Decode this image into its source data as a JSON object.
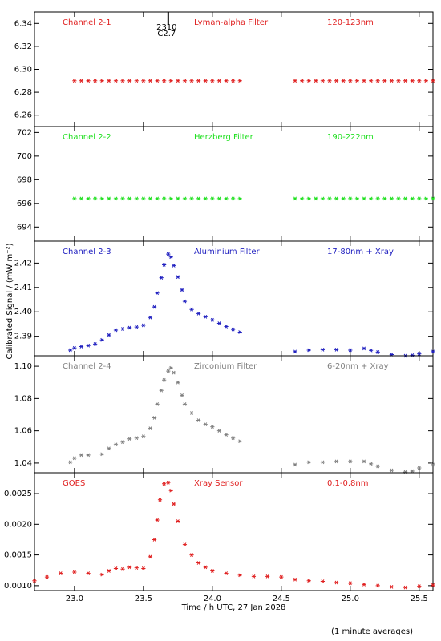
{
  "chart_data": [
    {
      "type": "scatter",
      "color": "#e02020",
      "labels": [
        "Channel 2-1",
        "Lyman-alpha Filter",
        "120-123nm"
      ],
      "xlim": [
        22.71,
        25.6
      ],
      "ylim": [
        6.25,
        6.35
      ],
      "yticks": [
        6.26,
        6.28,
        {
          "value": 6.3,
          "label": "6.30"
        },
        6.32,
        6.34
      ],
      "annotation": {
        "x": 23.68,
        "text": [
          "2310",
          "C2.7"
        ]
      },
      "x": [
        23.0,
        23.05,
        23.1,
        23.15,
        23.2,
        23.25,
        23.3,
        23.35,
        23.4,
        23.45,
        23.5,
        23.55,
        23.6,
        23.65,
        23.7,
        23.75,
        23.8,
        23.85,
        23.9,
        23.95,
        24.0,
        24.05,
        24.1,
        24.15,
        24.2,
        24.6,
        24.65,
        24.7,
        24.75,
        24.8,
        24.85,
        24.9,
        24.95,
        25.0,
        25.05,
        25.1,
        25.15,
        25.2,
        25.25,
        25.3,
        25.35,
        25.4,
        25.45,
        25.5,
        25.55,
        25.6
      ],
      "values": [
        6.29,
        6.29,
        6.29,
        6.29,
        6.29,
        6.29,
        6.29,
        6.29,
        6.29,
        6.29,
        6.29,
        6.29,
        6.29,
        6.29,
        6.29,
        6.29,
        6.29,
        6.29,
        6.29,
        6.29,
        6.29,
        6.29,
        6.29,
        6.29,
        6.29,
        6.29,
        6.29,
        6.29,
        6.29,
        6.29,
        6.29,
        6.29,
        6.29,
        6.29,
        6.29,
        6.29,
        6.29,
        6.29,
        6.29,
        6.29,
        6.29,
        6.29,
        6.29,
        6.29,
        6.29,
        6.29
      ]
    },
    {
      "type": "scatter",
      "color": "#20e020",
      "labels": [
        "Channel 2-2",
        "Herzberg Filter",
        "190-222nm"
      ],
      "xlim": [
        22.71,
        25.6
      ],
      "ylim": [
        692.8,
        702.5
      ],
      "yticks": [
        694,
        696,
        698,
        700,
        702
      ],
      "x": [
        23.0,
        23.05,
        23.1,
        23.15,
        23.2,
        23.25,
        23.3,
        23.35,
        23.4,
        23.45,
        23.5,
        23.55,
        23.6,
        23.65,
        23.7,
        23.75,
        23.8,
        23.85,
        23.9,
        23.95,
        24.0,
        24.05,
        24.1,
        24.15,
        24.2,
        24.6,
        24.65,
        24.7,
        24.75,
        24.8,
        24.85,
        24.9,
        24.95,
        25.0,
        25.05,
        25.1,
        25.15,
        25.2,
        25.25,
        25.3,
        25.35,
        25.4,
        25.45,
        25.5,
        25.55,
        25.6
      ],
      "values": [
        696.4,
        696.4,
        696.4,
        696.4,
        696.4,
        696.4,
        696.4,
        696.4,
        696.4,
        696.4,
        696.4,
        696.4,
        696.4,
        696.4,
        696.4,
        696.4,
        696.4,
        696.4,
        696.4,
        696.4,
        696.4,
        696.4,
        696.4,
        696.4,
        696.4,
        696.4,
        696.4,
        696.4,
        696.4,
        696.4,
        696.4,
        696.4,
        696.4,
        696.4,
        696.4,
        696.4,
        696.4,
        696.4,
        696.4,
        696.4,
        696.4,
        696.4,
        696.4,
        696.4,
        696.4,
        696.4
      ]
    },
    {
      "type": "scatter",
      "color": "#2020c0",
      "labels": [
        "Channel 2-3",
        "Aluminium Filter",
        "17-80nm + Xray"
      ],
      "xlim": [
        22.71,
        25.6
      ],
      "ylim": [
        2.382,
        2.429
      ],
      "yticks": [
        2.39,
        {
          "value": 2.4,
          "label": "2.40"
        },
        2.41,
        2.42
      ],
      "x": [
        22.97,
        23.0,
        23.05,
        23.1,
        23.15,
        23.2,
        23.25,
        23.3,
        23.35,
        23.4,
        23.45,
        23.5,
        23.55,
        23.58,
        23.6,
        23.63,
        23.65,
        23.68,
        23.7,
        23.72,
        23.75,
        23.78,
        23.8,
        23.85,
        23.9,
        23.95,
        24.0,
        24.05,
        24.1,
        24.15,
        24.2,
        24.6,
        24.7,
        24.8,
        24.9,
        25.0,
        25.1,
        25.15,
        25.2,
        25.3,
        25.4,
        25.45,
        25.5,
        25.6
      ],
      "values": [
        2.3843,
        2.3852,
        2.3858,
        2.3862,
        2.3868,
        2.3885,
        2.3905,
        2.3925,
        2.393,
        2.3935,
        2.3938,
        2.3945,
        2.3977,
        2.402,
        2.4077,
        2.414,
        2.4193,
        2.4237,
        2.4225,
        2.419,
        2.4143,
        2.409,
        2.4043,
        2.401,
        2.3993,
        2.398,
        2.3967,
        2.3953,
        2.394,
        2.3928,
        2.3917,
        2.3837,
        2.3843,
        2.3845,
        2.3845,
        2.3843,
        2.385,
        2.3842,
        2.3835,
        2.3825,
        2.382,
        2.3822,
        2.3828,
        2.3837
      ]
    },
    {
      "type": "scatter",
      "color": "#808080",
      "labels": [
        "Channel 2-4",
        "Zirconium Filter",
        "6-20nm + Xray"
      ],
      "xlim": [
        22.71,
        25.6
      ],
      "ylim": [
        1.034,
        1.1065
      ],
      "yticks": [
        1.04,
        1.06,
        1.08,
        {
          "value": 1.1,
          "label": "1.10"
        }
      ],
      "x": [
        22.97,
        23.0,
        23.05,
        23.1,
        23.2,
        23.25,
        23.3,
        23.35,
        23.4,
        23.45,
        23.5,
        23.55,
        23.58,
        23.6,
        23.63,
        23.65,
        23.68,
        23.7,
        23.72,
        23.75,
        23.78,
        23.8,
        23.85,
        23.9,
        23.95,
        24.0,
        24.05,
        24.1,
        24.15,
        24.2,
        24.6,
        24.7,
        24.8,
        24.9,
        25.0,
        25.1,
        25.15,
        25.2,
        25.3,
        25.4,
        25.45,
        25.5,
        25.6
      ],
      "values": [
        1.0405,
        1.043,
        1.045,
        1.045,
        1.0455,
        1.049,
        1.0515,
        1.053,
        1.055,
        1.0555,
        1.0565,
        1.0615,
        1.068,
        1.0765,
        1.085,
        1.0915,
        1.097,
        1.099,
        1.096,
        1.09,
        1.082,
        1.0765,
        1.071,
        1.0665,
        1.064,
        1.0625,
        1.06,
        1.0575,
        1.0555,
        1.0535,
        1.039,
        1.0405,
        1.0405,
        1.041,
        1.041,
        1.041,
        1.0395,
        1.038,
        1.0355,
        1.0345,
        1.035,
        1.037,
        1.039
      ]
    },
    {
      "type": "scatter",
      "color": "#e02020",
      "labels": [
        "GOES",
        "Xray Sensor",
        "0.1-0.8nm"
      ],
      "xlim": [
        22.71,
        25.6
      ],
      "ylim": [
        0.00092,
        0.00284
      ],
      "yticks": [
        {
          "value": 0.001,
          "label": "0.0010"
        },
        0.0015,
        {
          "value": 0.002,
          "label": "0.0020"
        },
        0.0025
      ],
      "xticks": [
        {
          "value": 23,
          "label": "23.0"
        },
        23.5,
        {
          "value": 24,
          "label": "24.0"
        },
        24.5,
        {
          "value": 25,
          "label": "25.0"
        },
        25.5
      ],
      "xlabel": "Time / h UTC, 27 Jan 2028",
      "x": [
        22.71,
        22.8,
        22.9,
        23.0,
        23.1,
        23.2,
        23.25,
        23.3,
        23.35,
        23.4,
        23.45,
        23.5,
        23.55,
        23.58,
        23.6,
        23.62,
        23.65,
        23.68,
        23.7,
        23.72,
        23.75,
        23.8,
        23.85,
        23.9,
        23.95,
        24.0,
        24.1,
        24.2,
        24.3,
        24.4,
        24.5,
        24.6,
        24.7,
        24.8,
        24.9,
        25.0,
        25.1,
        25.2,
        25.3,
        25.4,
        25.5,
        25.6
      ],
      "values": [
        0.00108,
        0.00114,
        0.0012,
        0.00122,
        0.0012,
        0.00118,
        0.00124,
        0.00128,
        0.00127,
        0.0013,
        0.00129,
        0.00128,
        0.00147,
        0.00175,
        0.00207,
        0.0024,
        0.00266,
        0.00268,
        0.00255,
        0.00233,
        0.00205,
        0.00167,
        0.0015,
        0.00137,
        0.0013,
        0.00124,
        0.0012,
        0.00117,
        0.00115,
        0.00115,
        0.00114,
        0.0011,
        0.00108,
        0.00107,
        0.00105,
        0.00104,
        0.00102,
        0.001,
        0.00098,
        0.00097,
        0.00099,
        0.00101
      ]
    }
  ],
  "ylabel": "Calibrated Signal / (mW m⁻²)",
  "footnote": "(1 minute averages)"
}
